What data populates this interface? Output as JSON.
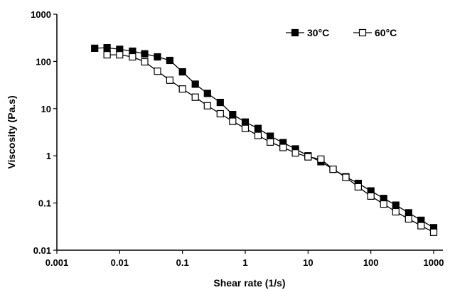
{
  "chart_data": {
    "type": "scatter",
    "title": "",
    "xlabel": "Shear rate (1/s)",
    "ylabel": "Viscosity (Pa.s)",
    "xscale": "log",
    "yscale": "log",
    "xlim": [
      0.001,
      1000
    ],
    "ylim": [
      0.01,
      1000
    ],
    "x_ticks": [
      "0.001",
      "0.01",
      "0.1",
      "1",
      "10",
      "100",
      "1000"
    ],
    "y_ticks": [
      "0.01",
      "0.1",
      "1",
      "10",
      "100",
      "1000"
    ],
    "grid": false,
    "legend_position": "top-right",
    "series": [
      {
        "name": "30°C",
        "marker": "filled-square",
        "color": "#000000",
        "x": [
          0.004,
          0.0063,
          0.01,
          0.016,
          0.025,
          0.04,
          0.063,
          0.1,
          0.16,
          0.25,
          0.4,
          0.63,
          1,
          1.6,
          2.5,
          4,
          6.3,
          10,
          16,
          25,
          40,
          63,
          100,
          160,
          250,
          400,
          630,
          1000
        ],
        "y": [
          190,
          195,
          180,
          165,
          145,
          125,
          105,
          60,
          33,
          21,
          13.5,
          7.5,
          5.2,
          3.8,
          2.6,
          1.9,
          1.4,
          1.0,
          0.75,
          0.52,
          0.36,
          0.26,
          0.18,
          0.125,
          0.09,
          0.062,
          0.043,
          0.03
        ]
      },
      {
        "name": "60°C",
        "marker": "open-square",
        "color": "#000000",
        "x": [
          0.0063,
          0.01,
          0.016,
          0.025,
          0.04,
          0.063,
          0.1,
          0.16,
          0.25,
          0.4,
          0.63,
          1,
          1.6,
          2.5,
          4,
          6.3,
          10,
          16,
          25,
          40,
          63,
          100,
          160,
          250,
          400,
          630,
          1000
        ],
        "y": [
          138,
          138,
          125,
          98,
          62,
          40,
          26,
          17.5,
          11.5,
          7.8,
          5.4,
          3.8,
          2.7,
          1.95,
          1.5,
          1.15,
          0.95,
          0.85,
          0.52,
          0.35,
          0.22,
          0.14,
          0.095,
          0.065,
          0.046,
          0.033,
          0.024
        ]
      }
    ]
  }
}
